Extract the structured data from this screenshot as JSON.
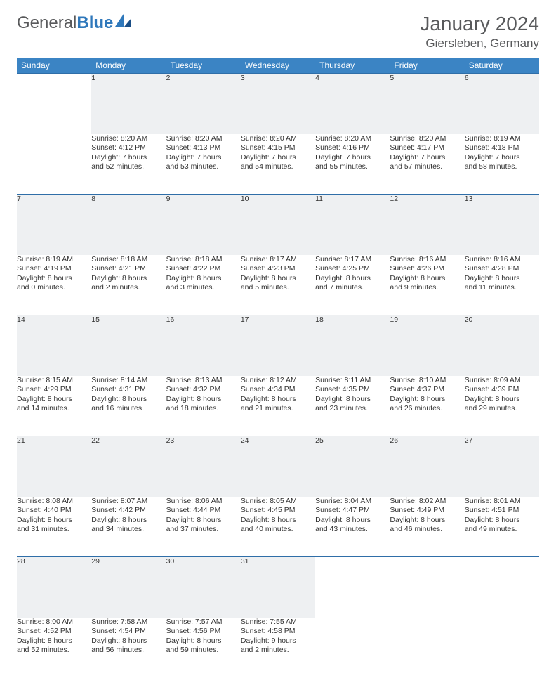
{
  "brand": {
    "part1": "General",
    "part2": "Blue"
  },
  "title": "January 2024",
  "location": "Giersleben, Germany",
  "colors": {
    "header_bg": "#3b84c4",
    "rule": "#2f6ea8",
    "daynum_bg": "#eef0f2",
    "text": "#333333",
    "brand_gray": "#58595b",
    "brand_blue": "#2f78bb"
  },
  "weekdays": [
    "Sunday",
    "Monday",
    "Tuesday",
    "Wednesday",
    "Thursday",
    "Friday",
    "Saturday"
  ],
  "weeks": [
    {
      "nums": [
        "",
        "1",
        "2",
        "3",
        "4",
        "5",
        "6"
      ],
      "cells": [
        {
          "lines": []
        },
        {
          "lines": [
            "Sunrise: 8:20 AM",
            "Sunset: 4:12 PM",
            "Daylight: 7 hours",
            "and 52 minutes."
          ]
        },
        {
          "lines": [
            "Sunrise: 8:20 AM",
            "Sunset: 4:13 PM",
            "Daylight: 7 hours",
            "and 53 minutes."
          ]
        },
        {
          "lines": [
            "Sunrise: 8:20 AM",
            "Sunset: 4:15 PM",
            "Daylight: 7 hours",
            "and 54 minutes."
          ]
        },
        {
          "lines": [
            "Sunrise: 8:20 AM",
            "Sunset: 4:16 PM",
            "Daylight: 7 hours",
            "and 55 minutes."
          ]
        },
        {
          "lines": [
            "Sunrise: 8:20 AM",
            "Sunset: 4:17 PM",
            "Daylight: 7 hours",
            "and 57 minutes."
          ]
        },
        {
          "lines": [
            "Sunrise: 8:19 AM",
            "Sunset: 4:18 PM",
            "Daylight: 7 hours",
            "and 58 minutes."
          ]
        }
      ]
    },
    {
      "nums": [
        "7",
        "8",
        "9",
        "10",
        "11",
        "12",
        "13"
      ],
      "cells": [
        {
          "lines": [
            "Sunrise: 8:19 AM",
            "Sunset: 4:19 PM",
            "Daylight: 8 hours",
            "and 0 minutes."
          ]
        },
        {
          "lines": [
            "Sunrise: 8:18 AM",
            "Sunset: 4:21 PM",
            "Daylight: 8 hours",
            "and 2 minutes."
          ]
        },
        {
          "lines": [
            "Sunrise: 8:18 AM",
            "Sunset: 4:22 PM",
            "Daylight: 8 hours",
            "and 3 minutes."
          ]
        },
        {
          "lines": [
            "Sunrise: 8:17 AM",
            "Sunset: 4:23 PM",
            "Daylight: 8 hours",
            "and 5 minutes."
          ]
        },
        {
          "lines": [
            "Sunrise: 8:17 AM",
            "Sunset: 4:25 PM",
            "Daylight: 8 hours",
            "and 7 minutes."
          ]
        },
        {
          "lines": [
            "Sunrise: 8:16 AM",
            "Sunset: 4:26 PM",
            "Daylight: 8 hours",
            "and 9 minutes."
          ]
        },
        {
          "lines": [
            "Sunrise: 8:16 AM",
            "Sunset: 4:28 PM",
            "Daylight: 8 hours",
            "and 11 minutes."
          ]
        }
      ]
    },
    {
      "nums": [
        "14",
        "15",
        "16",
        "17",
        "18",
        "19",
        "20"
      ],
      "cells": [
        {
          "lines": [
            "Sunrise: 8:15 AM",
            "Sunset: 4:29 PM",
            "Daylight: 8 hours",
            "and 14 minutes."
          ]
        },
        {
          "lines": [
            "Sunrise: 8:14 AM",
            "Sunset: 4:31 PM",
            "Daylight: 8 hours",
            "and 16 minutes."
          ]
        },
        {
          "lines": [
            "Sunrise: 8:13 AM",
            "Sunset: 4:32 PM",
            "Daylight: 8 hours",
            "and 18 minutes."
          ]
        },
        {
          "lines": [
            "Sunrise: 8:12 AM",
            "Sunset: 4:34 PM",
            "Daylight: 8 hours",
            "and 21 minutes."
          ]
        },
        {
          "lines": [
            "Sunrise: 8:11 AM",
            "Sunset: 4:35 PM",
            "Daylight: 8 hours",
            "and 23 minutes."
          ]
        },
        {
          "lines": [
            "Sunrise: 8:10 AM",
            "Sunset: 4:37 PM",
            "Daylight: 8 hours",
            "and 26 minutes."
          ]
        },
        {
          "lines": [
            "Sunrise: 8:09 AM",
            "Sunset: 4:39 PM",
            "Daylight: 8 hours",
            "and 29 minutes."
          ]
        }
      ]
    },
    {
      "nums": [
        "21",
        "22",
        "23",
        "24",
        "25",
        "26",
        "27"
      ],
      "cells": [
        {
          "lines": [
            "Sunrise: 8:08 AM",
            "Sunset: 4:40 PM",
            "Daylight: 8 hours",
            "and 31 minutes."
          ]
        },
        {
          "lines": [
            "Sunrise: 8:07 AM",
            "Sunset: 4:42 PM",
            "Daylight: 8 hours",
            "and 34 minutes."
          ]
        },
        {
          "lines": [
            "Sunrise: 8:06 AM",
            "Sunset: 4:44 PM",
            "Daylight: 8 hours",
            "and 37 minutes."
          ]
        },
        {
          "lines": [
            "Sunrise: 8:05 AM",
            "Sunset: 4:45 PM",
            "Daylight: 8 hours",
            "and 40 minutes."
          ]
        },
        {
          "lines": [
            "Sunrise: 8:04 AM",
            "Sunset: 4:47 PM",
            "Daylight: 8 hours",
            "and 43 minutes."
          ]
        },
        {
          "lines": [
            "Sunrise: 8:02 AM",
            "Sunset: 4:49 PM",
            "Daylight: 8 hours",
            "and 46 minutes."
          ]
        },
        {
          "lines": [
            "Sunrise: 8:01 AM",
            "Sunset: 4:51 PM",
            "Daylight: 8 hours",
            "and 49 minutes."
          ]
        }
      ]
    },
    {
      "nums": [
        "28",
        "29",
        "30",
        "31",
        "",
        "",
        ""
      ],
      "cells": [
        {
          "lines": [
            "Sunrise: 8:00 AM",
            "Sunset: 4:52 PM",
            "Daylight: 8 hours",
            "and 52 minutes."
          ]
        },
        {
          "lines": [
            "Sunrise: 7:58 AM",
            "Sunset: 4:54 PM",
            "Daylight: 8 hours",
            "and 56 minutes."
          ]
        },
        {
          "lines": [
            "Sunrise: 7:57 AM",
            "Sunset: 4:56 PM",
            "Daylight: 8 hours",
            "and 59 minutes."
          ]
        },
        {
          "lines": [
            "Sunrise: 7:55 AM",
            "Sunset: 4:58 PM",
            "Daylight: 9 hours",
            "and 2 minutes."
          ]
        },
        {
          "lines": []
        },
        {
          "lines": []
        },
        {
          "lines": []
        }
      ]
    }
  ]
}
